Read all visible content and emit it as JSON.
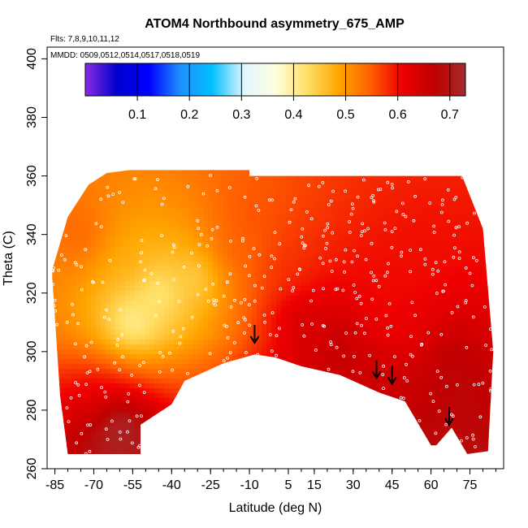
{
  "chart_data": {
    "type": "heatmap",
    "title": "ATOM4 Northbound asymmetry_675_AMP",
    "subtitle": "Flts: 7,8,9,10,11,12",
    "annotation": "MMDD: 0509,0512,0514,0517,0518,0519",
    "xlabel": "Latitude (deg N)",
    "ylabel": "Theta (C)",
    "xlim": [
      -88,
      88
    ],
    "ylim": [
      260,
      404
    ],
    "xticks": [
      "-85",
      "-70",
      "-55",
      "-40",
      "-25",
      "-10",
      "5",
      "15",
      "30",
      "45",
      "60",
      "75"
    ],
    "xtick_values": [
      -85,
      -70,
      -55,
      -40,
      -25,
      -10,
      5,
      15,
      30,
      45,
      60,
      75
    ],
    "yticks": [
      "260",
      "280",
      "300",
      "320",
      "340",
      "360",
      "380",
      "400"
    ],
    "ytick_values": [
      260,
      280,
      300,
      320,
      340,
      360,
      380,
      400
    ],
    "colorbar": {
      "range": [
        0.0,
        0.73
      ],
      "ticks": [
        "0.1",
        "0.2",
        "0.3",
        "0.4",
        "0.5",
        "0.6",
        "0.7"
      ],
      "tick_values": [
        0.1,
        0.2,
        0.3,
        0.4,
        0.5,
        0.6,
        0.7
      ],
      "colors": [
        "#8a2be2",
        "#0000cd",
        "#0000ff",
        "#1e90ff",
        "#00bfff",
        "#e0f6ff",
        "#ffffe0",
        "#ffe066",
        "#ffa500",
        "#ff6000",
        "#ee0000",
        "#c00000",
        "#a52a2a"
      ]
    },
    "coverage": {
      "theta_top": [
        [
          -86,
          328
        ],
        [
          -80,
          346
        ],
        [
          -72,
          357
        ],
        [
          -65,
          361
        ],
        [
          -56,
          362
        ],
        [
          -10,
          362
        ],
        [
          -10,
          360
        ],
        [
          -5,
          360
        ],
        [
          40,
          360
        ],
        [
          60,
          360
        ],
        [
          72,
          360
        ],
        [
          80,
          342
        ]
      ],
      "theta_bottom": [
        [
          -86,
          325
        ],
        [
          -83,
          285
        ],
        [
          -80,
          265
        ],
        [
          -52,
          265
        ],
        [
          -52,
          275
        ],
        [
          -40,
          282
        ],
        [
          -35,
          290
        ],
        [
          -20,
          296
        ],
        [
          -8,
          299
        ],
        [
          0,
          298
        ],
        [
          10,
          295
        ],
        [
          25,
          292
        ],
        [
          40,
          286
        ],
        [
          50,
          283
        ],
        [
          60,
          268
        ],
        [
          62,
          268
        ],
        [
          68,
          274
        ],
        [
          74,
          265
        ],
        [
          82,
          266
        ],
        [
          84,
          300
        ]
      ]
    },
    "field": [
      {
        "lat": -75,
        "theta": 340,
        "value": 0.55
      },
      {
        "lat": -55,
        "theta": 330,
        "value": 0.48
      },
      {
        "lat": -45,
        "theta": 320,
        "value": 0.38
      },
      {
        "lat": -55,
        "theta": 310,
        "value": 0.36
      },
      {
        "lat": -30,
        "theta": 325,
        "value": 0.42
      },
      {
        "lat": -15,
        "theta": 335,
        "value": 0.55
      },
      {
        "lat": -10,
        "theta": 345,
        "value": 0.56
      },
      {
        "lat": 5,
        "theta": 330,
        "value": 0.58
      },
      {
        "lat": 10,
        "theta": 310,
        "value": 0.66
      },
      {
        "lat": 25,
        "theta": 305,
        "value": 0.68
      },
      {
        "lat": 40,
        "theta": 320,
        "value": 0.6
      },
      {
        "lat": 55,
        "theta": 335,
        "value": 0.6
      },
      {
        "lat": 70,
        "theta": 300,
        "value": 0.67
      },
      {
        "lat": -70,
        "theta": 285,
        "value": 0.58
      },
      {
        "lat": -60,
        "theta": 275,
        "value": 0.7
      }
    ],
    "arrows": [
      {
        "lat": -8,
        "theta": 303
      },
      {
        "lat": 39,
        "theta": 291
      },
      {
        "lat": 45,
        "theta": 289
      },
      {
        "lat": 67,
        "theta": 275
      }
    ]
  }
}
